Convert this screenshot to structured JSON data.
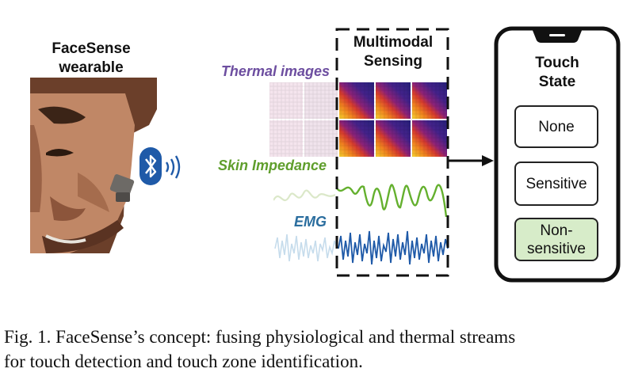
{
  "wearable": {
    "title_line1": "FaceSense",
    "title_line2": "wearable"
  },
  "modalities": {
    "thermal": {
      "label": "Thermal images",
      "color": "#6d4ea0"
    },
    "skin": {
      "label": "Skin Impedance",
      "color": "#5f9e2c"
    },
    "emg": {
      "label": "EMG",
      "color": "#2a6d9e"
    }
  },
  "multimodal": {
    "title_line1": "Multimodal",
    "title_line2": "Sensing"
  },
  "phone": {
    "title_line1": "Touch",
    "title_line2": "State",
    "states": [
      {
        "label": "None",
        "highlighted": false
      },
      {
        "label": "Sensitive",
        "highlighted": false
      },
      {
        "label": "Non-sensitive",
        "label_line1": "Non-",
        "label_line2": "sensitive",
        "highlighted": true
      }
    ],
    "highlight_color": "#d7ecc9"
  },
  "icons": {
    "bluetooth": "bluetooth-icon",
    "signal": "wireless-signal-icon"
  },
  "caption": {
    "line1": "Fig. 1.   FaceSense’s concept: fusing physiological and thermal streams",
    "line2": "for touch detection and touch zone identification."
  }
}
